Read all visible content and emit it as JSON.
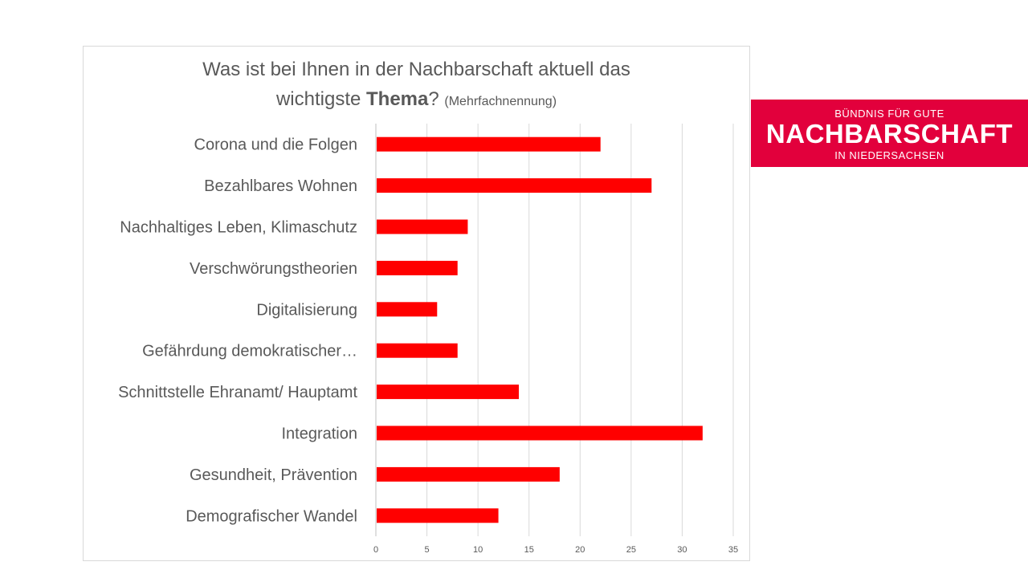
{
  "chart_data": {
    "type": "bar",
    "orientation": "horizontal",
    "title_line1": "Was ist bei Ihnen in der Nachbarschaft aktuell das",
    "title_line2_prefix": "wichtigste ",
    "title_line2_bold": "Thema",
    "title_line2_suffix": "?",
    "title_note": "(Mehrfachnennung)",
    "categories": [
      "Corona und die Folgen",
      "Bezahlbares Wohnen",
      "Nachhaltiges Leben, Klimaschutz",
      "Verschwörungstheorien",
      "Digitalisierung",
      "Gefährdung demokratischer…",
      "Schnittstelle Ehranamt/ Hauptamt",
      "Integration",
      "Gesundheit, Prävention",
      "Demografischer Wandel"
    ],
    "values": [
      22,
      27,
      9,
      8,
      6,
      8,
      14,
      32,
      18,
      12
    ],
    "xlim": [
      0,
      35
    ],
    "ticks": [
      "0",
      "5",
      "10",
      "15",
      "20",
      "25",
      "30",
      "35"
    ],
    "bar_color": "#ff0000",
    "grid": true,
    "xlabel": "",
    "ylabel": ""
  },
  "logo": {
    "top": "BÜNDNIS FÜR GUTE",
    "main": "NACHBARSCHAFT",
    "bottom": "IN NIEDERSACHSEN",
    "color": "#e2003c"
  }
}
